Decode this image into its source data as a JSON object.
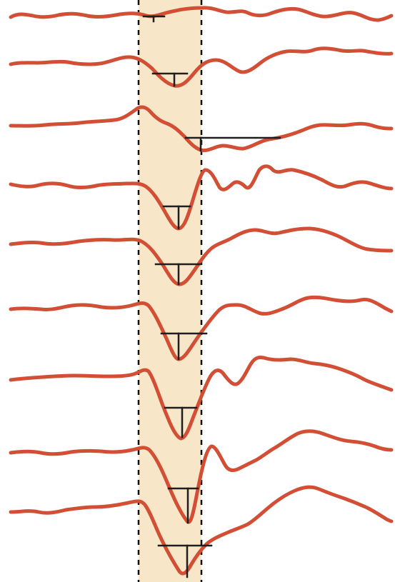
{
  "colors": {
    "background": "#ffffff",
    "highlight_band": "#f8e6c8",
    "trace": "#d24f35",
    "marker": "#1f1f1f",
    "dashed_boundary": "#111111"
  },
  "figure": {
    "trace_count": 9
  }
}
